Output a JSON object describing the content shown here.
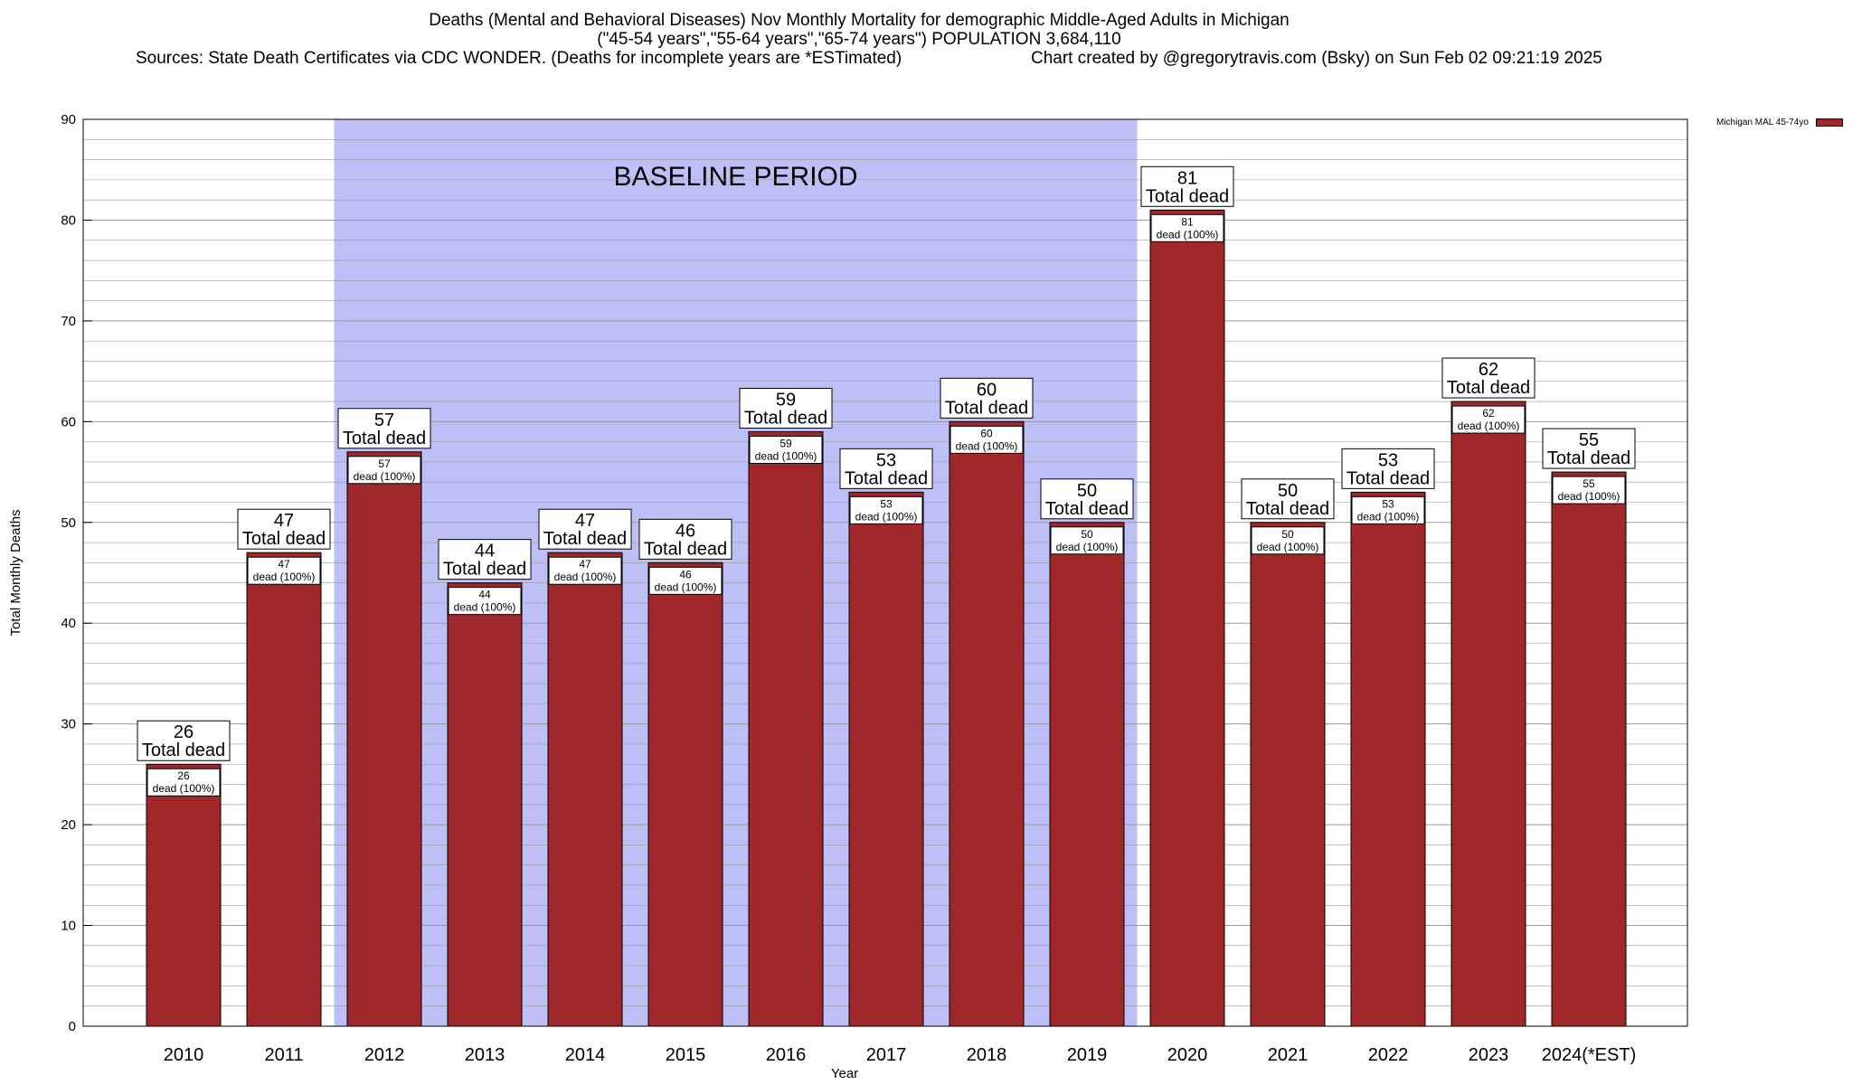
{
  "header": {
    "title_line1": "Deaths (Mental and Behavioral Diseases) Nov Monthly Mortality for demographic Middle-Aged Adults in Michigan",
    "title_line2": "(\"45-54 years\",\"55-64 years\",\"65-74 years\") POPULATION 3,684,110",
    "sources": "Sources: State Death Certificates via CDC WONDER. (Deaths for incomplete years are *ESTimated)",
    "credit": "Chart created by @gregorytravis.com (Bsky) on Sun Feb 02 09:21:19 2025"
  },
  "chart_data": {
    "type": "bar",
    "title": "Deaths (Mental and Behavioral Diseases) Nov Monthly Mortality for demographic Middle-Aged Adults in Michigan",
    "xlabel": "Year",
    "ylabel": "Total Monthly Deaths",
    "ylim": [
      0,
      90
    ],
    "yticks": [
      0,
      10,
      20,
      30,
      40,
      50,
      60,
      70,
      80,
      90
    ],
    "grid": true,
    "legend_position": "top-right",
    "categories": [
      "2010",
      "2011",
      "2012",
      "2013",
      "2014",
      "2015",
      "2016",
      "2017",
      "2018",
      "2019",
      "2020",
      "2021",
      "2022",
      "2023",
      "2024(*EST)"
    ],
    "series": [
      {
        "name": "Michigan MAL 45-74yo",
        "color": "#a0282b",
        "values": [
          26,
          47,
          57,
          44,
          47,
          46,
          59,
          53,
          60,
          50,
          81,
          50,
          53,
          62,
          55
        ]
      }
    ],
    "top_label_suffix": "Total dead",
    "inner_label_suffix": "dead (100%)",
    "annotation": {
      "text": "BASELINE PERIOD",
      "from_category": "2012",
      "to_category": "2019",
      "color": "#bfbff7"
    }
  }
}
